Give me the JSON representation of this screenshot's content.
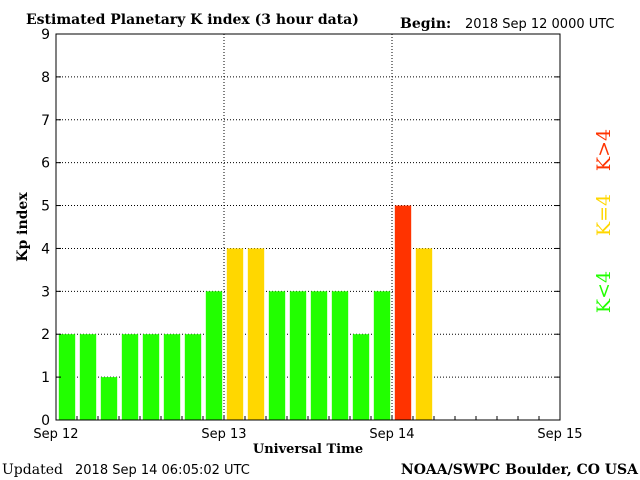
{
  "chart_data": {
    "type": "bar",
    "title": "Estimated Planetary K index (3 hour data)",
    "begin_label": "Begin:",
    "begin_value": "2018 Sep 12 0000 UTC",
    "xlabel": "Universal Time",
    "ylabel": "Kp index",
    "ylim": [
      0,
      9
    ],
    "yticks": [
      "0",
      "1",
      "2",
      "3",
      "4",
      "5",
      "6",
      "7",
      "8",
      "9"
    ],
    "xlim_hours": [
      0,
      72
    ],
    "xticks": [
      {
        "hour": 0,
        "label": "Sep 12"
      },
      {
        "hour": 24,
        "label": "Sep 13"
      },
      {
        "hour": 48,
        "label": "Sep 14"
      },
      {
        "hour": 72,
        "label": "Sep 15"
      }
    ],
    "bar_width_hours": 3,
    "values": [
      2,
      2,
      1,
      2,
      2,
      2,
      2,
      3,
      4,
      4,
      3,
      3,
      3,
      3,
      2,
      3,
      5,
      4
    ],
    "grid": true,
    "colors": {
      "low": "#22ff00",
      "mid": "#ffd700",
      "high": "#ff3300"
    },
    "legend": {
      "placement": "right",
      "items": [
        {
          "label": "K<4",
          "color_key": "low"
        },
        {
          "label": "K=4",
          "color_key": "mid"
        },
        {
          "label": "K>4",
          "color_key": "high"
        }
      ]
    }
  },
  "footer": {
    "updated_label": "Updated",
    "updated_value": "2018 Sep 14 06:05:02 UTC",
    "credit": "NOAA/SWPC Boulder, CO USA"
  }
}
